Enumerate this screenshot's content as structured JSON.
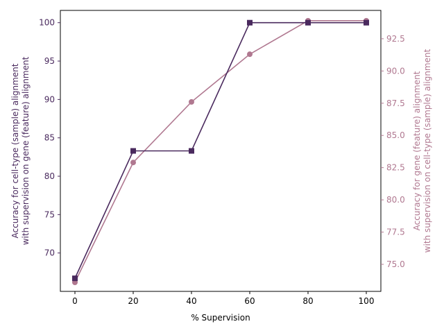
{
  "chart_data": {
    "type": "line",
    "xlabel": "% Supervision",
    "ylabel_left": [
      "Accuracy for cell-type (sample) alignment",
      "with supervision on gene (feature) alignment"
    ],
    "ylabel_right": [
      "Accuracy for gene (feature) alignment",
      "with supervision on cell-type (sample) alignment"
    ],
    "x_ticks": [
      0,
      20,
      40,
      60,
      80,
      100
    ],
    "left_ticks": [
      70,
      75,
      80,
      85,
      90,
      95,
      100
    ],
    "right_ticks": [
      "75.0",
      "77.5",
      "80.0",
      "82.5",
      "85.0",
      "87.5",
      "90.0",
      "92.5"
    ],
    "xlim": [
      -5,
      105
    ],
    "ylim_left": [
      65.0,
      101.6
    ],
    "ylim_right": [
      72.9,
      94.7
    ],
    "left_color": "#4a2a5e",
    "right_color": "#b07890",
    "series": [
      {
        "axis": "left",
        "color": "#4a2a5e",
        "marker": "square",
        "x": [
          0,
          20,
          40,
          60,
          80,
          100
        ],
        "values": [
          66.7,
          83.3,
          83.3,
          100,
          100,
          100
        ]
      },
      {
        "axis": "right",
        "color": "#b07890",
        "marker": "circle",
        "x": [
          0,
          20,
          40,
          60,
          80,
          100
        ],
        "values": [
          73.6,
          82.9,
          87.6,
          91.3,
          93.9,
          93.9
        ]
      }
    ]
  }
}
